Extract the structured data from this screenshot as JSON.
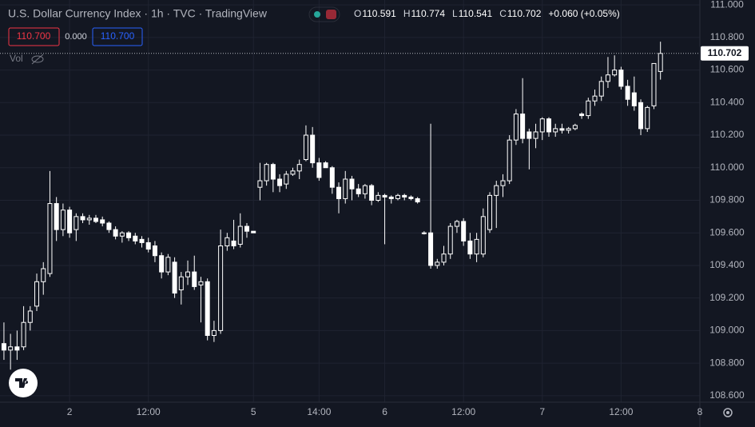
{
  "chart_data": {
    "type": "candlestick",
    "title": "U.S. Dollar Currency Index · 1h · TVC · TradingView",
    "ohlc_labels": [
      "O",
      "H",
      "L",
      "C"
    ],
    "change_label": "+0.060 (+0.05%)",
    "quote": {
      "bid": "110.700",
      "spread": "0.000",
      "ask": "110.700"
    },
    "volume_label": "Vol",
    "up_color": "#131722",
    "down_color": "#ffffff",
    "wick_color": "#ffffff",
    "grid": true,
    "xlim": [
      -0.6,
      106
    ],
    "ylim": [
      108.56,
      111.03
    ],
    "xticks": [
      {
        "value": 10,
        "label": "2"
      },
      {
        "value": 22,
        "label": "12:00"
      },
      {
        "value": 38,
        "label": "5"
      },
      {
        "value": 48,
        "label": "14:00"
      },
      {
        "value": 58,
        "label": "6"
      },
      {
        "value": 70,
        "label": "12:00"
      },
      {
        "value": 82,
        "label": "7"
      },
      {
        "value": 94,
        "label": "12:00"
      },
      {
        "value": 106,
        "label": "8"
      }
    ],
    "yticks": [
      {
        "value": 108.6,
        "label": "108.600"
      },
      {
        "value": 108.8,
        "label": "108.800"
      },
      {
        "value": 109,
        "label": "109.000"
      },
      {
        "value": 109.2,
        "label": "109.200"
      },
      {
        "value": 109.4,
        "label": "109.400"
      },
      {
        "value": 109.6,
        "label": "109.600"
      },
      {
        "value": 109.8,
        "label": "109.800"
      },
      {
        "value": 110,
        "label": "110.000"
      },
      {
        "value": 110.2,
        "label": "110.200"
      },
      {
        "value": 110.4,
        "label": "110.400"
      },
      {
        "value": 110.6,
        "label": "110.600"
      },
      {
        "value": 110.8,
        "label": "110.800"
      },
      {
        "value": 111,
        "label": "111.000"
      }
    ],
    "x": [
      0,
      1,
      2,
      3,
      4,
      5,
      6,
      7,
      8,
      9,
      10,
      11,
      12,
      13,
      14,
      15,
      16,
      17,
      18,
      19,
      20,
      21,
      22,
      23,
      24,
      25,
      26,
      27,
      28,
      29,
      30,
      31,
      32,
      33,
      34,
      35,
      36,
      37,
      38,
      39,
      40,
      41,
      42,
      43,
      44,
      45,
      46,
      47,
      48,
      49,
      50,
      51,
      52,
      53,
      54,
      55,
      56,
      57,
      58,
      59,
      60,
      61,
      62,
      63,
      64,
      65,
      66,
      67,
      68,
      69,
      70,
      71,
      72,
      73,
      74,
      75,
      76,
      77,
      78,
      79,
      80,
      81,
      82,
      83,
      84,
      85,
      86,
      87,
      88,
      89,
      90,
      91,
      92,
      93,
      94,
      95,
      96,
      97,
      98,
      99,
      100
    ],
    "open": [
      108.92,
      108.88,
      108.9,
      108.9,
      109.05,
      109.15,
      109.3,
      109.35,
      109.78,
      109.62,
      109.74,
      109.62,
      109.7,
      109.68,
      109.69,
      109.68,
      109.66,
      109.62,
      109.58,
      109.6,
      109.58,
      109.56,
      109.54,
      109.52,
      109.46,
      109.36,
      109.42,
      109.25,
      109.33,
      109.36,
      109.28,
      109.3,
      108.97,
      109.0,
      109.52,
      109.55,
      109.53,
      109.64,
      109.61,
      109.88,
      109.92,
      110.02,
      109.93,
      109.9,
      109.96,
      109.98,
      110.05,
      110.2,
      110.03,
      110.03,
      110.0,
      109.88,
      109.81,
      109.93,
      109.87,
      109.84,
      109.89,
      109.8,
      109.83,
      109.82,
      109.81,
      109.83,
      109.82,
      109.81,
      109.6,
      109.6,
      109.4,
      109.42,
      109.47,
      109.64,
      109.67,
      109.55,
      109.47,
      109.47,
      109.62,
      109.83,
      109.89,
      109.92,
      110.17,
      110.33,
      110.22,
      110.18,
      110.22,
      110.3,
      110.22,
      110.24,
      110.23,
      110.24,
      110.33,
      110.32,
      110.41,
      110.44,
      110.53,
      110.57,
      110.6,
      110.5,
      110.46,
      110.4,
      110.24,
      110.38,
      110.591
    ],
    "high": [
      109.05,
      108.98,
      109.0,
      109.15,
      109.15,
      109.35,
      109.42,
      109.98,
      109.82,
      109.78,
      109.76,
      109.72,
      109.72,
      109.71,
      109.71,
      109.7,
      109.67,
      109.64,
      109.61,
      109.61,
      109.6,
      109.58,
      109.57,
      109.55,
      109.48,
      109.47,
      109.45,
      109.36,
      109.43,
      109.46,
      109.33,
      109.32,
      109.06,
      109.62,
      109.6,
      109.68,
      109.72,
      109.66,
      109.61,
      110.03,
      110.03,
      110.03,
      109.96,
      109.98,
      110.0,
      110.05,
      110.26,
      110.25,
      110.06,
      110.04,
      110.01,
      109.91,
      109.98,
      109.95,
      109.9,
      109.9,
      109.9,
      109.85,
      109.84,
      109.83,
      109.84,
      109.84,
      109.83,
      109.82,
      109.61,
      110.27,
      109.44,
      109.52,
      109.66,
      109.68,
      109.69,
      109.6,
      109.6,
      109.75,
      109.85,
      109.92,
      109.96,
      110.2,
      110.36,
      110.55,
      110.24,
      110.27,
      110.31,
      110.31,
      110.27,
      110.27,
      110.25,
      110.27,
      110.34,
      110.43,
      110.48,
      110.56,
      110.68,
      110.69,
      110.62,
      110.54,
      110.56,
      110.42,
      110.38,
      110.62,
      110.774
    ],
    "low": [
      108.82,
      108.76,
      108.82,
      108.88,
      109.0,
      109.12,
      109.22,
      109.33,
      109.55,
      109.58,
      109.57,
      109.55,
      109.66,
      109.65,
      109.66,
      109.64,
      109.6,
      109.56,
      109.54,
      109.55,
      109.53,
      109.51,
      109.48,
      109.42,
      109.32,
      109.34,
      109.2,
      109.16,
      109.28,
      109.25,
      109.05,
      108.94,
      108.93,
      108.98,
      109.49,
      109.5,
      109.51,
      109.57,
      109.6,
      109.8,
      109.89,
      109.85,
      109.85,
      109.87,
      109.95,
      109.93,
      110.04,
      110.0,
      109.92,
      110.0,
      109.84,
      109.72,
      109.78,
      109.8,
      109.82,
      109.81,
      109.77,
      109.79,
      109.53,
      109.78,
      109.8,
      109.8,
      109.8,
      109.78,
      109.59,
      109.38,
      109.38,
      109.4,
      109.44,
      109.6,
      109.52,
      109.44,
      109.42,
      109.45,
      109.6,
      109.63,
      109.82,
      109.9,
      110.14,
      110.15,
      109.99,
      110.12,
      110.17,
      110.19,
      110.19,
      110.21,
      110.21,
      110.23,
      110.3,
      110.3,
      110.38,
      110.41,
      110.49,
      110.56,
      110.48,
      110.38,
      110.35,
      110.2,
      110.22,
      110.36,
      110.541
    ],
    "close": [
      108.88,
      108.9,
      108.88,
      109.05,
      109.12,
      109.3,
      109.38,
      109.78,
      109.62,
      109.74,
      109.6,
      109.7,
      109.68,
      109.69,
      109.67,
      109.66,
      109.62,
      109.58,
      109.6,
      109.57,
      109.55,
      109.54,
      109.5,
      109.46,
      109.36,
      109.45,
      109.23,
      109.33,
      109.36,
      109.27,
      109.3,
      108.97,
      109.0,
      109.52,
      109.57,
      109.52,
      109.64,
      109.61,
      109.6,
      109.92,
      110.02,
      109.93,
      109.89,
      109.96,
      109.98,
      110.02,
      110.2,
      110.03,
      109.94,
      110.0,
      109.88,
      109.81,
      109.93,
      109.87,
      109.84,
      109.89,
      109.8,
      109.83,
      109.82,
      109.81,
      109.83,
      109.82,
      109.81,
      109.79,
      109.6,
      109.4,
      109.42,
      109.47,
      109.64,
      109.67,
      109.55,
      109.47,
      109.56,
      109.7,
      109.83,
      109.89,
      109.92,
      110.17,
      110.33,
      110.18,
      110.18,
      110.22,
      110.3,
      110.22,
      110.24,
      110.23,
      110.24,
      110.26,
      110.32,
      110.41,
      110.44,
      110.53,
      110.57,
      110.6,
      110.5,
      110.42,
      110.38,
      110.24,
      110.37,
      110.64,
      110.702
    ]
  }
}
